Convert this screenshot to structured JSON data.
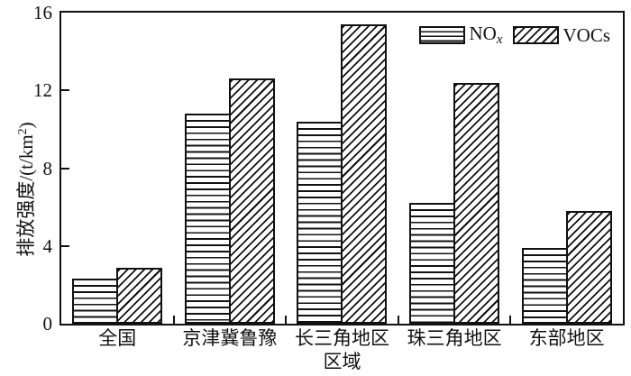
{
  "chart_data": {
    "type": "bar",
    "title": "",
    "categories": [
      "全国",
      "京津冀鲁豫",
      "长三角地区",
      "珠三角地区",
      "东部地区"
    ],
    "series": [
      {
        "name": "NOx",
        "label_base": "NO",
        "label_sub": "x",
        "hatch": "horizontal-lines",
        "values": [
          2.3,
          10.8,
          10.4,
          6.2,
          3.9
        ]
      },
      {
        "name": "VOCs",
        "label": "VOCs",
        "hatch": "diagonal-lines",
        "values": [
          2.9,
          12.6,
          15.4,
          12.4,
          5.8
        ]
      }
    ],
    "xlabel": "区域",
    "ylabel": "排放强度/(t/km²)",
    "ylabel_parts": {
      "base": "排放强度/(t/km",
      "sup": "2",
      "close": ")"
    },
    "ylim": [
      0,
      16
    ],
    "yticks": [
      0,
      4,
      8,
      12,
      16
    ],
    "legend_position": "top-right-inside",
    "grid": false,
    "colors": {
      "ink": "#111111",
      "background": "#ffffff"
    }
  }
}
